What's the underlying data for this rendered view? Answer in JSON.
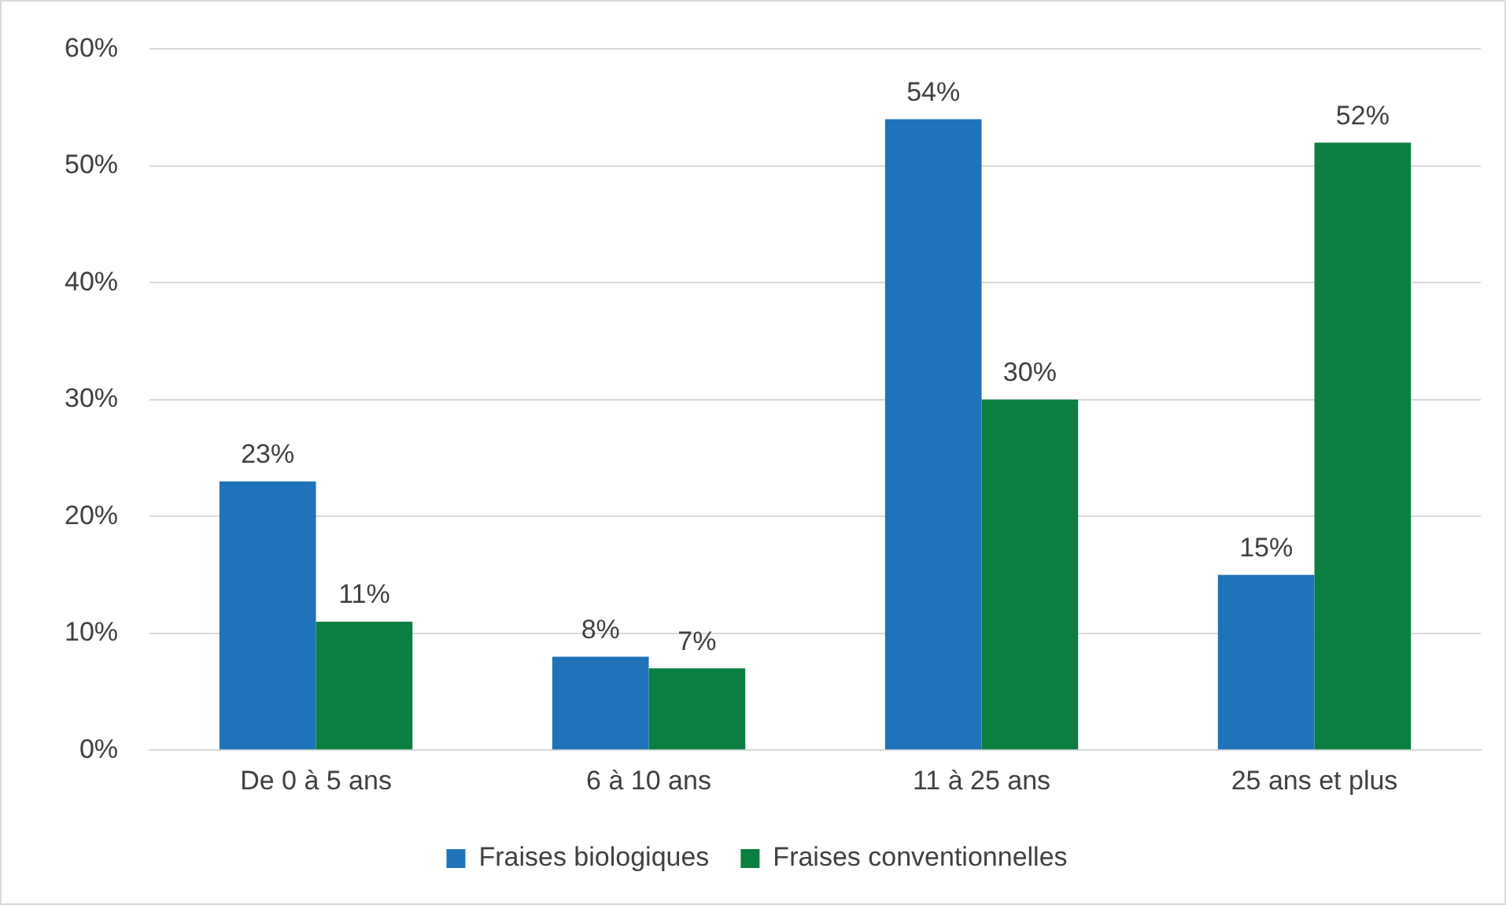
{
  "chart_data": {
    "type": "bar",
    "categories": [
      "De 0 à 5 ans",
      "6 à 10 ans",
      "11 à 25 ans",
      "25 ans et plus"
    ],
    "series": [
      {
        "name": "Fraises biologiques",
        "color": "#1f73b8",
        "values": [
          23,
          8,
          54,
          15
        ],
        "value_labels": [
          "23%",
          "8%",
          "54%",
          "15%"
        ]
      },
      {
        "name": "Fraises conventionnelles",
        "color": "#0a7f40",
        "values": [
          11,
          7,
          30,
          52
        ],
        "value_labels": [
          "11%",
          "7%",
          "30%",
          "52%"
        ]
      }
    ],
    "ylim": [
      0,
      60
    ],
    "yticks": [
      {
        "value": 0,
        "label": "0%"
      },
      {
        "value": 10,
        "label": "10%"
      },
      {
        "value": 20,
        "label": "20%"
      },
      {
        "value": 30,
        "label": "30%"
      },
      {
        "value": 40,
        "label": "40%"
      },
      {
        "value": 50,
        "label": "50%"
      },
      {
        "value": 60,
        "label": "60%"
      }
    ],
    "grid": "y",
    "legend": "bottom"
  }
}
